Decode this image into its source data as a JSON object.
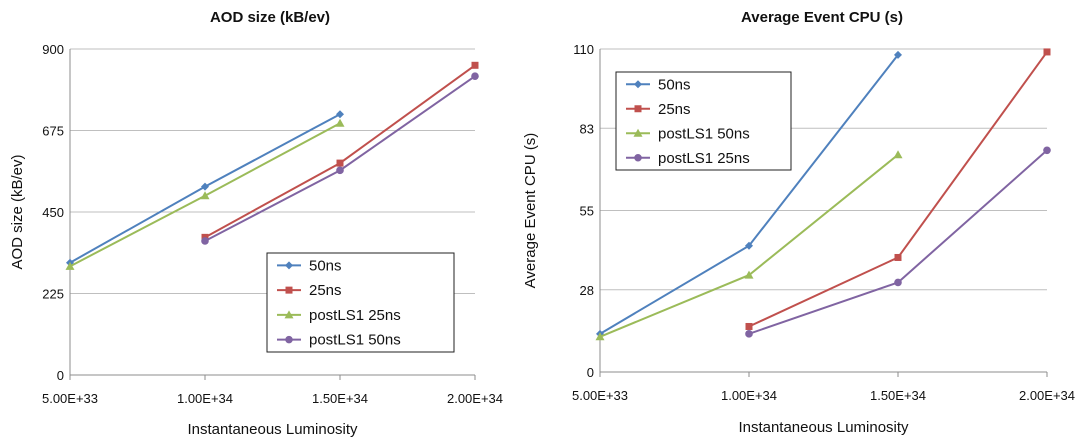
{
  "chart_data": [
    {
      "type": "line",
      "title": "AOD size (kB/ev)",
      "xlabel": "Instantaneous Luminosity",
      "ylabel": "AOD size (kB/ev)",
      "x_tick_labels": [
        "5.00E+33",
        "1.00E+34",
        "1.50E+34",
        "2.00E+34"
      ],
      "y_ticks": [
        0,
        225,
        450,
        675,
        900
      ],
      "ylim": [
        0,
        900
      ],
      "grid": true,
      "legend_position": "bottom-right",
      "series": [
        {
          "name": "50ns",
          "color": "#4f81bd",
          "marker": "diamond",
          "points": [
            [
              0,
              310
            ],
            [
              1,
              520
            ],
            [
              2,
              720
            ]
          ]
        },
        {
          "name": "25ns",
          "color": "#c0504d",
          "marker": "square",
          "points": [
            [
              1,
              380
            ],
            [
              2,
              585
            ],
            [
              3,
              855
            ]
          ]
        },
        {
          "name": "postLS1 25ns",
          "color": "#9bbb59",
          "marker": "triangle",
          "points": [
            [
              0,
              300
            ],
            [
              1,
              495
            ],
            [
              2,
              695
            ]
          ]
        },
        {
          "name": "postLS1 50ns",
          "color": "#8064a2",
          "marker": "circle",
          "points": [
            [
              1,
              370
            ],
            [
              2,
              565
            ],
            [
              3,
              825
            ]
          ]
        }
      ]
    },
    {
      "type": "line",
      "title": "Average Event CPU (s)",
      "xlabel": "Instantaneous Luminosity",
      "ylabel": "Average Event CPU (s)",
      "x_tick_labels": [
        "5.00E+33",
        "1.00E+34",
        "1.50E+34",
        "2.00E+34"
      ],
      "y_ticks": [
        0,
        28,
        55,
        83,
        110
      ],
      "ylim": [
        0,
        110
      ],
      "grid": true,
      "legend_position": "top-left",
      "series": [
        {
          "name": "50ns",
          "color": "#4f81bd",
          "marker": "diamond",
          "points": [
            [
              0,
              13
            ],
            [
              1,
              43
            ],
            [
              2,
              108
            ]
          ]
        },
        {
          "name": "25ns",
          "color": "#c0504d",
          "marker": "square",
          "points": [
            [
              1,
              15.5
            ],
            [
              2,
              39
            ],
            [
              3,
              109
            ]
          ]
        },
        {
          "name": "postLS1 50ns",
          "color": "#9bbb59",
          "marker": "triangle",
          "points": [
            [
              0,
              12
            ],
            [
              1,
              33
            ],
            [
              2,
              74
            ]
          ]
        },
        {
          "name": "postLS1 25ns",
          "color": "#8064a2",
          "marker": "circle",
          "points": [
            [
              1,
              13
            ],
            [
              2,
              30.5
            ],
            [
              3,
              75.5
            ]
          ]
        }
      ]
    }
  ]
}
